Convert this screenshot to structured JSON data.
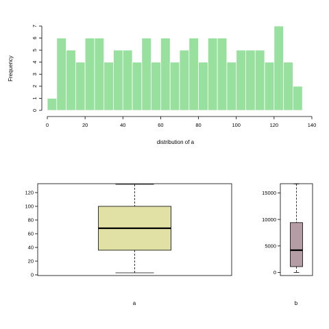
{
  "chart_data": [
    {
      "type": "bar",
      "kind": "histogram",
      "title": "",
      "xlabel": "distribution of a",
      "ylabel": "Frequency",
      "bin_width": 5,
      "bins_start": 0,
      "values": [
        1,
        6,
        5,
        4,
        6,
        6,
        4,
        5,
        5,
        4,
        6,
        4,
        6,
        4,
        5,
        6,
        4,
        6,
        6,
        4,
        5,
        5,
        5,
        4,
        7,
        4,
        2
      ],
      "xlim": [
        0,
        140
      ],
      "ylim": [
        0,
        7
      ],
      "xticks": [
        "0",
        "20",
        "40",
        "60",
        "80",
        "100",
        "120",
        "140"
      ],
      "yticks": [
        "0",
        "1",
        "2",
        "3",
        "4",
        "5",
        "6",
        "7"
      ],
      "color": "#98E09E",
      "grid": false
    },
    {
      "type": "box",
      "xlabel": "a",
      "ylim": [
        0,
        135
      ],
      "yticks": [
        "0",
        "20",
        "40",
        "60",
        "80",
        "100",
        "120"
      ],
      "min": 3,
      "q1": 36,
      "median": 68,
      "q3": 100,
      "max": 132,
      "color": "#E1E1A6",
      "grid": false
    },
    {
      "type": "box",
      "xlabel": "b",
      "ylim": [
        0,
        17000
      ],
      "yticks": [
        "0",
        "5000",
        "10000",
        "15000"
      ],
      "min": 0,
      "q1": 1100,
      "median": 4200,
      "q3": 9400,
      "max": 16700,
      "color": "#B59DA6",
      "grid": false
    }
  ]
}
